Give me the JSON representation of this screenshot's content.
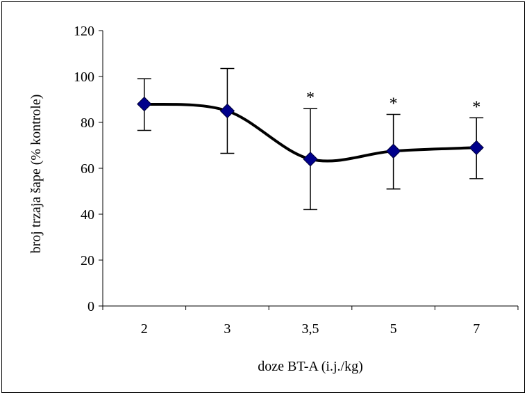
{
  "chart_data": {
    "type": "line",
    "title": "",
    "xlabel": "doze BT-A (i.j./kg)",
    "ylabel": "broj trzaja šape (% kontrole)",
    "categories": [
      "2",
      "3",
      "3,5",
      "5",
      "7"
    ],
    "y_ticks": [
      "0",
      "20",
      "40",
      "60",
      "80",
      "100",
      "120"
    ],
    "ylim": [
      0,
      120
    ],
    "grid": false,
    "legend": "none",
    "smooth": true,
    "series": [
      {
        "values": [
          88,
          85,
          64,
          67.5,
          69
        ],
        "error_upper": [
          99,
          103.5,
          86,
          83.5,
          82
        ],
        "error_lower": [
          76.5,
          66.5,
          42,
          51,
          55.5
        ],
        "significance": [
          "",
          "",
          "*",
          "*",
          "*"
        ],
        "line_color": "#000000",
        "marker_color": "#00008b",
        "marker": "diamond"
      }
    ]
  }
}
